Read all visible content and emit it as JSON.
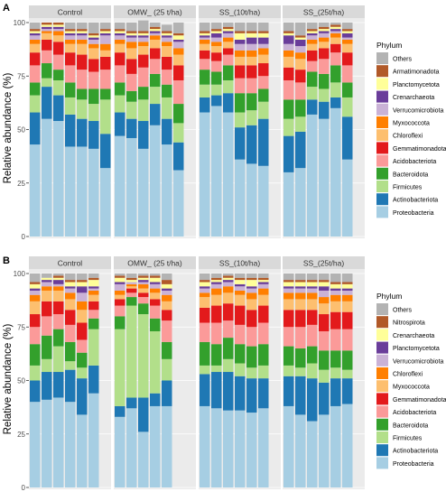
{
  "chart_data": [
    {
      "panel": "A",
      "type": "bar",
      "stacked": true,
      "title": "",
      "xlabel": "",
      "ylabel": "Relative abundance (%)",
      "ylim": [
        0,
        100
      ],
      "yticks": [
        0,
        25,
        50,
        75,
        100
      ],
      "facets": [
        "Control",
        "OMW_ (25 t/ha)",
        "SS_(10t/ha)",
        "SS_(25t/ha)"
      ],
      "legend_title": "Phylum",
      "legend_position": "right",
      "series": [
        {
          "name": "Proteobacteria",
          "color": "#a6cee3",
          "values": [
            [
              43,
              55,
              54,
              42,
              42,
              41,
              32
            ],
            [
              47,
              46,
              41,
              52,
              43,
              31,
              null
            ],
            [
              58,
              61,
              58,
              36,
              34,
              33,
              null
            ],
            [
              30,
              32,
              57,
              55,
              60,
              36,
              null
            ]
          ]
        },
        {
          "name": "Actinobacteriota",
          "color": "#1f78b4",
          "values": [
            [
              15,
              15,
              12,
              15,
              13,
              13,
              16
            ],
            [
              11,
              9,
              13,
              10,
              12,
              13,
              null
            ],
            [
              7,
              5,
              9,
              15,
              18,
              22,
              null
            ],
            [
              17,
              17,
              7,
              8,
              5,
              20,
              null
            ]
          ]
        },
        {
          "name": "Firmicutes",
          "color": "#b2df8a",
          "values": [
            [
              8,
              4,
              7,
              8,
              9,
              8,
              16
            ],
            [
              8,
              8,
              10,
              8,
              10,
              9,
              null
            ],
            [
              6,
              5,
              6,
              7,
              7,
              8,
              null
            ],
            [
              8,
              7,
              6,
              6,
              7,
              9,
              null
            ]
          ]
        },
        {
          "name": "Bacteroidota",
          "color": "#33a02c",
          "values": [
            [
              6,
              7,
              5,
              7,
              5,
              7,
              5
            ],
            [
              6,
              5,
              6,
              6,
              6,
              9,
              null
            ],
            [
              7,
              6,
              7,
              9,
              8,
              6,
              null
            ],
            [
              9,
              8,
              7,
              7,
              8,
              7,
              null
            ]
          ]
        },
        {
          "name": "Acidobacteriota",
          "color": "#fb9a99",
          "values": [
            [
              8,
              6,
              7,
              8,
              9,
              8,
              9
            ],
            [
              8,
              8,
              9,
              7,
              7,
              11,
              null
            ],
            [
              5,
              5,
              5,
              7,
              7,
              6,
              null
            ],
            [
              9,
              8,
              5,
              7,
              6,
              8,
              null
            ]
          ]
        },
        {
          "name": "Gemmatimonadota",
          "color": "#e31a1c",
          "values": [
            [
              6,
              5,
              6,
              6,
              7,
              6,
              6
            ],
            [
              6,
              7,
              6,
              5,
              6,
              7,
              null
            ],
            [
              4,
              4,
              3,
              6,
              6,
              6,
              null
            ],
            [
              6,
              6,
              5,
              5,
              4,
              6,
              null
            ]
          ]
        },
        {
          "name": "Chloroflexi",
          "color": "#fdbf6f",
          "values": [
            [
              4,
              3,
              3,
              4,
              5,
              5,
              3
            ],
            [
              4,
              5,
              4,
              4,
              5,
              5,
              null
            ],
            [
              3,
              3,
              3,
              4,
              4,
              4,
              null
            ],
            [
              5,
              5,
              3,
              3,
              3,
              4,
              null
            ]
          ]
        },
        {
          "name": "Myxococcota",
          "color": "#ff7f00",
          "values": [
            [
              2,
              1,
              2,
              2,
              2,
              2,
              3
            ],
            [
              2,
              3,
              2,
              2,
              2,
              3,
              null
            ],
            [
              2,
              2,
              2,
              3,
              3,
              3,
              null
            ],
            [
              3,
              3,
              2,
              2,
              2,
              2,
              null
            ]
          ]
        },
        {
          "name": "Verrucomicrobiota",
          "color": "#cab2d6",
          "values": [
            [
              2,
              1,
              1,
              2,
              2,
              2,
              4
            ],
            [
              2,
              2,
              2,
              1,
              2,
              3,
              null
            ],
            [
              1,
              2,
              2,
              3,
              3,
              2,
              null
            ],
            [
              3,
              3,
              2,
              2,
              1,
              1,
              null
            ]
          ]
        },
        {
          "name": "Crenarchaeota",
          "color": "#6a3d9a",
          "values": [
            [
              1,
              1,
              1,
              1,
              1,
              1,
              1
            ],
            [
              1,
              1,
              1,
              1,
              1,
              1,
              null
            ],
            [
              1,
              2,
              1,
              2,
              3,
              3,
              null
            ],
            [
              4,
              3,
              1,
              1,
              1,
              2,
              null
            ]
          ]
        },
        {
          "name": "Planctomycetota",
          "color": "#ffff99",
          "values": [
            [
              1,
              1,
              1,
              1,
              1,
              1,
              1
            ],
            [
              1,
              1,
              1,
              1,
              1,
              2,
              null
            ],
            [
              1,
              1,
              1,
              3,
              2,
              2,
              null
            ],
            [
              1,
              1,
              1,
              1,
              1,
              1,
              null
            ]
          ]
        },
        {
          "name": "Armatimonadota",
          "color": "#b15928",
          "values": [
            [
              1,
              1,
              1,
              1,
              1,
              1,
              1
            ],
            [
              1,
              1,
              1,
              1,
              1,
              1,
              null
            ],
            [
              1,
              1,
              1,
              1,
              1,
              1,
              null
            ],
            [
              1,
              1,
              1,
              1,
              1,
              1,
              null
            ]
          ]
        },
        {
          "name": "Others",
          "color": "#b3b3b3",
          "values": [
            [
              3,
              0,
              0,
              3,
              3,
              5,
              3
            ],
            [
              3,
              4,
              5,
              2,
              3,
              5,
              null
            ],
            [
              4,
              3,
              2,
              4,
              4,
              4,
              null
            ],
            [
              4,
              6,
              3,
              2,
              1,
              3,
              null
            ]
          ]
        }
      ]
    },
    {
      "panel": "B",
      "type": "bar",
      "stacked": true,
      "title": "",
      "xlabel": "",
      "ylabel": "Relative abundance (%)",
      "ylim": [
        0,
        100
      ],
      "yticks": [
        0,
        25,
        50,
        75,
        100
      ],
      "facets": [
        "Control",
        "OMW_ (25 t/ha)",
        "SS_(10t/ha)",
        "SS_(25t/ha)"
      ],
      "legend_title": "Phylum",
      "legend_position": "right",
      "series": [
        {
          "name": "Proteobacteria",
          "color": "#a6cee3",
          "values": [
            [
              40,
              41,
              42,
              40,
              34,
              44,
              null
            ],
            [
              33,
              37,
              26,
              38,
              38,
              null,
              null
            ],
            [
              38,
              37,
              36,
              36,
              35,
              37,
              null
            ],
            [
              38,
              34,
              31,
              34,
              38,
              39,
              null
            ]
          ]
        },
        {
          "name": "Actinobacteriota",
          "color": "#1f78b4",
          "values": [
            [
              10,
              13,
              12,
              15,
              17,
              13,
              null
            ],
            [
              5,
              5,
              16,
              6,
              12,
              null,
              null
            ],
            [
              15,
              17,
              18,
              16,
              16,
              14,
              null
            ],
            [
              14,
              18,
              20,
              15,
              13,
              12,
              null
            ]
          ]
        },
        {
          "name": "Firmicutes",
          "color": "#b2df8a",
          "values": [
            [
              7,
              6,
              12,
              4,
              5,
              17,
              null
            ],
            [
              36,
              43,
              39,
              29,
              10,
              null,
              null
            ],
            [
              4,
              3,
              6,
              6,
              5,
              6,
              null
            ],
            [
              5,
              4,
              7,
              6,
              5,
              4,
              null
            ]
          ]
        },
        {
          "name": "Bacteroidota",
          "color": "#33a02c",
          "values": [
            [
              10,
              11,
              8,
              9,
              7,
              5,
              null
            ],
            [
              6,
              4,
              5,
              6,
              8,
              null,
              null
            ],
            [
              11,
              10,
              10,
              9,
              10,
              10,
              null
            ],
            [
              9,
              9,
              8,
              9,
              8,
              9,
              null
            ]
          ]
        },
        {
          "name": "Acidobacteriota",
          "color": "#fb9a99",
          "values": [
            [
              8,
              9,
              7,
              8,
              6,
              4,
              null
            ],
            [
              5,
              2,
              3,
              6,
              10,
              null,
              null
            ],
            [
              9,
              10,
              8,
              9,
              9,
              10,
              null
            ],
            [
              9,
              10,
              10,
              9,
              10,
              10,
              null
            ]
          ]
        },
        {
          "name": "Gemmatimonadota",
          "color": "#e31a1c",
          "values": [
            [
              6,
              7,
              6,
              7,
              8,
              4,
              null
            ],
            [
              3,
              2,
              2,
              3,
              5,
              null,
              null
            ],
            [
              7,
              8,
              8,
              9,
              8,
              8,
              null
            ],
            [
              8,
              8,
              7,
              8,
              8,
              8,
              null
            ]
          ]
        },
        {
          "name": "Myxococcota",
          "color": "#fdbf6f",
          "values": [
            [
              6,
              5,
              5,
              5,
              6,
              3,
              null
            ],
            [
              2,
              1,
              2,
              3,
              4,
              null,
              null
            ],
            [
              5,
              5,
              5,
              5,
              5,
              5,
              null
            ],
            [
              5,
              5,
              5,
              5,
              5,
              5,
              null
            ]
          ]
        },
        {
          "name": "Chloroflexi",
          "color": "#ff7f00",
          "values": [
            [
              3,
              2,
              2,
              3,
              4,
              2,
              null
            ],
            [
              2,
              1,
              2,
              2,
              3,
              null,
              null
            ],
            [
              2,
              3,
              3,
              2,
              3,
              3,
              null
            ],
            [
              3,
              3,
              3,
              3,
              3,
              3,
              null
            ]
          ]
        },
        {
          "name": "Verrucomicrobiota",
          "color": "#cab2d6",
          "values": [
            [
              2,
              2,
              1,
              2,
              4,
              1,
              null
            ],
            [
              3,
              1,
              1,
              2,
              2,
              null,
              null
            ],
            [
              2,
              2,
              2,
              2,
              2,
              2,
              null
            ],
            [
              2,
              2,
              2,
              3,
              2,
              2,
              null
            ]
          ]
        },
        {
          "name": "Planctomycetota",
          "color": "#6a3d9a",
          "values": [
            [
              1,
              1,
              2,
              1,
              3,
              1,
              null
            ],
            [
              1,
              0,
              1,
              1,
              1,
              null,
              null
            ],
            [
              1,
              1,
              1,
              1,
              1,
              1,
              null
            ],
            [
              1,
              1,
              1,
              2,
              1,
              1,
              null
            ]
          ]
        },
        {
          "name": "Crenarchaeota",
          "color": "#ffff99",
          "values": [
            [
              2,
              1,
              1,
              2,
              2,
              3,
              null
            ],
            [
              2,
              1,
              1,
              2,
              2,
              null,
              null
            ],
            [
              2,
              1,
              1,
              2,
              3,
              1,
              null
            ],
            [
              2,
              2,
              2,
              2,
              2,
              2,
              null
            ]
          ]
        },
        {
          "name": "Nitrospirota",
          "color": "#b15928",
          "values": [
            [
              1,
              0,
              1,
              1,
              1,
              1,
              null
            ],
            [
              1,
              1,
              1,
              1,
              2,
              null,
              null
            ],
            [
              1,
              1,
              1,
              1,
              1,
              1,
              null
            ],
            [
              1,
              1,
              1,
              1,
              1,
              1,
              null
            ]
          ]
        },
        {
          "name": "Others",
          "color": "#b3b3b3",
          "values": [
            [
              4,
              2,
              1,
              3,
              3,
              2,
              null
            ],
            [
              1,
              2,
              1,
              1,
              3,
              null,
              null
            ],
            [
              3,
              2,
              1,
              2,
              2,
              2,
              null
            ],
            [
              3,
              3,
              3,
              3,
              4,
              4,
              null
            ]
          ]
        }
      ]
    }
  ]
}
